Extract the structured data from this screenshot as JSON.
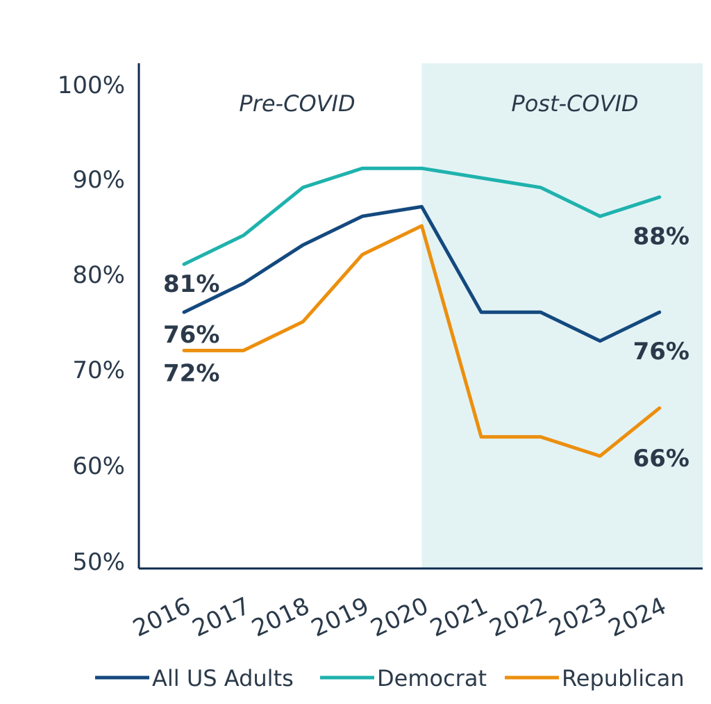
{
  "chart_data": {
    "type": "line",
    "categories": [
      "2016",
      "2017",
      "2018",
      "2019",
      "2020",
      "2021",
      "2022",
      "2023",
      "2024"
    ],
    "ylim": [
      50,
      100
    ],
    "yticks": [
      "50%",
      "60%",
      "70%",
      "80%",
      "90%",
      "100%"
    ],
    "ytick_values": [
      50,
      60,
      70,
      80,
      90,
      100
    ],
    "regions": [
      {
        "label": "Pre-COVID",
        "from": "2016",
        "to": "2020",
        "shaded": false
      },
      {
        "label": "Post-COVID",
        "from": "2020",
        "to": "2024",
        "shaded": true,
        "color": "#e3f3f4"
      }
    ],
    "series": [
      {
        "name": "All US Adults",
        "color": "#14497e",
        "values": [
          76,
          79,
          83,
          86,
          87,
          76,
          76,
          73,
          76
        ]
      },
      {
        "name": "Democrat",
        "color": "#1fb2ad",
        "values": [
          81,
          84,
          89,
          91,
          91,
          90,
          89,
          86,
          88
        ]
      },
      {
        "name": "Republican",
        "color": "#ec8f0e",
        "values": [
          72,
          72,
          75,
          82,
          85,
          63,
          63,
          61,
          66
        ]
      }
    ],
    "data_labels": [
      {
        "text": "81%",
        "series": "Democrat",
        "category": "2016"
      },
      {
        "text": "76%",
        "series": "All US Adults",
        "category": "2016"
      },
      {
        "text": "72%",
        "series": "Republican",
        "category": "2016"
      },
      {
        "text": "88%",
        "series": "Democrat",
        "category": "2024"
      },
      {
        "text": "76%",
        "series": "All US Adults",
        "category": "2024"
      },
      {
        "text": "66%",
        "series": "Republican",
        "category": "2024"
      }
    ],
    "legend_position": "bottom",
    "grid": false
  }
}
